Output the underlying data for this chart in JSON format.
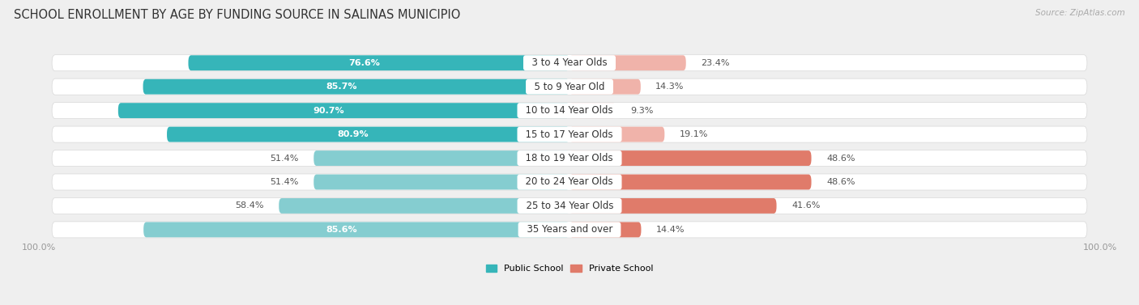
{
  "title": "SCHOOL ENROLLMENT BY AGE BY FUNDING SOURCE IN SALINAS MUNICIPIO",
  "source": "Source: ZipAtlas.com",
  "categories": [
    "3 to 4 Year Olds",
    "5 to 9 Year Old",
    "10 to 14 Year Olds",
    "15 to 17 Year Olds",
    "18 to 19 Year Olds",
    "20 to 24 Year Olds",
    "25 to 34 Year Olds",
    "35 Years and over"
  ],
  "public_values": [
    76.6,
    85.7,
    90.7,
    80.9,
    51.4,
    51.4,
    58.4,
    85.6
  ],
  "private_values": [
    23.4,
    14.3,
    9.3,
    19.1,
    48.6,
    48.6,
    41.6,
    14.4
  ],
  "public_color_dark": "#36b5b9",
  "public_color_light": "#85cdd0",
  "private_color_dark": "#e07b6a",
  "private_color_light": "#f0b3aa",
  "bg_color": "#efefef",
  "row_bg_color": "#ffffff",
  "axis_label_left": "100.0%",
  "axis_label_right": "100.0%",
  "legend_public": "Public School",
  "legend_private": "Private School",
  "title_fontsize": 10.5,
  "label_fontsize": 8.0,
  "bar_fontsize": 8.0,
  "category_fontsize": 8.5
}
